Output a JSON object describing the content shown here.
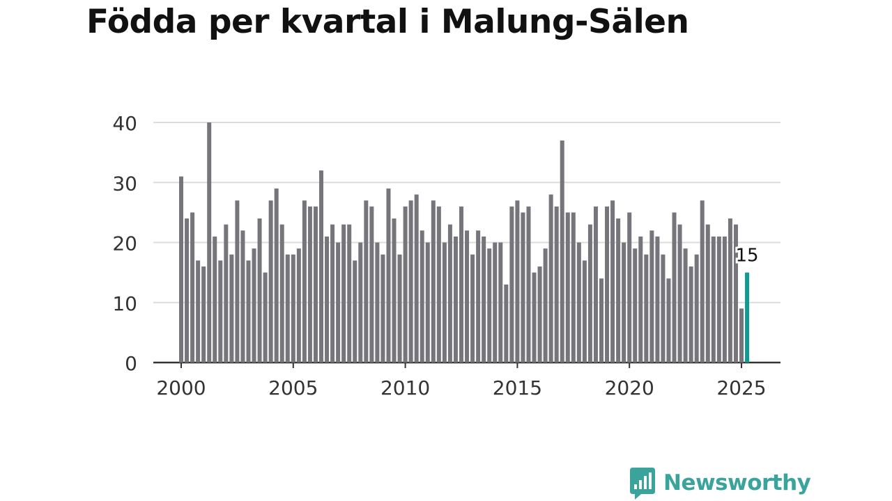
{
  "chart_data": {
    "type": "bar",
    "title": "Födda per kvartal i Malung-Sälen",
    "x": [
      2000.0,
      2000.25,
      2000.5,
      2000.75,
      2001.0,
      2001.25,
      2001.5,
      2001.75,
      2002.0,
      2002.25,
      2002.5,
      2002.75,
      2003.0,
      2003.25,
      2003.5,
      2003.75,
      2004.0,
      2004.25,
      2004.5,
      2004.75,
      2005.0,
      2005.25,
      2005.5,
      2005.75,
      2006.0,
      2006.25,
      2006.5,
      2006.75,
      2007.0,
      2007.25,
      2007.5,
      2007.75,
      2008.0,
      2008.25,
      2008.5,
      2008.75,
      2009.0,
      2009.25,
      2009.5,
      2009.75,
      2010.0,
      2010.25,
      2010.5,
      2010.75,
      2011.0,
      2011.25,
      2011.5,
      2011.75,
      2012.0,
      2012.25,
      2012.5,
      2012.75,
      2013.0,
      2013.25,
      2013.5,
      2013.75,
      2014.0,
      2014.25,
      2014.5,
      2014.75,
      2015.0,
      2015.25,
      2015.5,
      2015.75,
      2016.0,
      2016.25,
      2016.5,
      2016.75,
      2017.0,
      2017.25,
      2017.5,
      2017.75,
      2018.0,
      2018.25,
      2018.5,
      2018.75,
      2019.0,
      2019.25,
      2019.5,
      2019.75,
      2020.0,
      2020.25,
      2020.5,
      2020.75,
      2021.0,
      2021.25,
      2021.5,
      2021.75,
      2022.0,
      2022.25,
      2022.5,
      2022.75,
      2023.0,
      2023.25,
      2023.5,
      2023.75,
      2024.0,
      2024.25,
      2024.5,
      2024.75,
      2025.0,
      2025.25
    ],
    "values": [
      31,
      24,
      25,
      17,
      16,
      40,
      21,
      17,
      23,
      18,
      27,
      22,
      17,
      19,
      24,
      15,
      27,
      29,
      23,
      18,
      18,
      19,
      27,
      26,
      26,
      32,
      21,
      23,
      20,
      23,
      23,
      17,
      20,
      27,
      26,
      20,
      18,
      29,
      24,
      18,
      26,
      27,
      28,
      22,
      20,
      27,
      26,
      20,
      23,
      21,
      26,
      22,
      18,
      22,
      21,
      19,
      20,
      20,
      13,
      26,
      27,
      25,
      26,
      15,
      16,
      19,
      28,
      26,
      37,
      25,
      25,
      20,
      17,
      23,
      26,
      14,
      26,
      27,
      24,
      20,
      25,
      19,
      21,
      18,
      22,
      21,
      18,
      14,
      25,
      23,
      19,
      16,
      18,
      27,
      23,
      21,
      21,
      21,
      24,
      23,
      9,
      15
    ],
    "highlight": {
      "index": 101,
      "label": "15",
      "color": "#0f9a94"
    },
    "bar_color": "#75757b",
    "xlim": [
      2000,
      2025.5
    ],
    "ylim": [
      0,
      40
    ],
    "yticks": [
      0,
      10,
      20,
      30,
      40
    ],
    "xticks": [
      2000,
      2005,
      2010,
      2015,
      2020,
      2025
    ],
    "grid": true,
    "xlabel": "",
    "ylabel": ""
  },
  "brand": {
    "name": "Newsworthy",
    "color": "#3aa39b",
    "logo_icon": "bar-chart-speech-bubble-icon"
  }
}
